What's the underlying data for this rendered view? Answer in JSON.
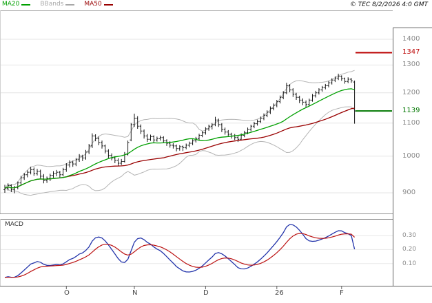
{
  "header": {
    "legend": [
      {
        "label": "MA20",
        "color": "#00a000"
      },
      {
        "label": "BBands",
        "color": "#a8a8a8"
      },
      {
        "label": "MA50",
        "color": "#990000"
      }
    ],
    "copyright": "© TEC 8/2/2026 4:0 GMT"
  },
  "macd_panel": {
    "label": "MACD"
  },
  "chart_data": {
    "type": "candlestick",
    "style": "ohlc-bars",
    "title": "",
    "x_axis": {
      "labels": [
        "O",
        "N",
        "D",
        "26",
        "F"
      ],
      "month_start_indices": [
        19,
        40,
        62,
        84,
        104
      ]
    },
    "price_scale": {
      "scale": "log",
      "ticks": [
        1400,
        1300,
        1200,
        1100,
        1000,
        900
      ],
      "visible_range": [
        848,
        1520
      ]
    },
    "levels": {
      "resistance": 1347,
      "resistance_color": "#bb0000",
      "support": 1139,
      "support_color": "#007700"
    },
    "overlays": [
      {
        "name": "MA20",
        "type": "sma",
        "period": 20,
        "color": "#00a000"
      },
      {
        "name": "MA50",
        "type": "sma",
        "period": 50,
        "color": "#990000"
      },
      {
        "name": "BBands",
        "type": "bollinger",
        "period": 20,
        "stddev": 2,
        "color": "#b4b4b4"
      }
    ],
    "indicator": {
      "name": "MACD",
      "fast": 12,
      "slow": 26,
      "signal": 9,
      "tick_labels": [
        "0.30",
        "0.20",
        "0.10"
      ],
      "macd_color": "#2233aa",
      "signal_color": "#bb1111"
    },
    "candles": [
      [
        908,
        921,
        900,
        912
      ],
      [
        912,
        925,
        906,
        919
      ],
      [
        919,
        922,
        902,
        908
      ],
      [
        908,
        918,
        899,
        914
      ],
      [
        914,
        930,
        909,
        926
      ],
      [
        926,
        945,
        921,
        940
      ],
      [
        940,
        953,
        934,
        948
      ],
      [
        948,
        960,
        941,
        955
      ],
      [
        955,
        970,
        949,
        962
      ],
      [
        962,
        968,
        945,
        952
      ],
      [
        952,
        964,
        946,
        958
      ],
      [
        958,
        962,
        938,
        944
      ],
      [
        944,
        950,
        925,
        932
      ],
      [
        932,
        943,
        926,
        938
      ],
      [
        938,
        951,
        931,
        946
      ],
      [
        946,
        958,
        940,
        952
      ],
      [
        952,
        961,
        944,
        955
      ],
      [
        955,
        959,
        940,
        948
      ],
      [
        948,
        967,
        944,
        962
      ],
      [
        962,
        980,
        956,
        975
      ],
      [
        975,
        988,
        968,
        982
      ],
      [
        982,
        987,
        970,
        978
      ],
      [
        978,
        995,
        972,
        990
      ],
      [
        990,
        1006,
        984,
        1000
      ],
      [
        1000,
        1004,
        986,
        995
      ],
      [
        995,
        1018,
        990,
        1012
      ],
      [
        1012,
        1036,
        1006,
        1030
      ],
      [
        1030,
        1068,
        1024,
        1060
      ],
      [
        1060,
        1065,
        1044,
        1052
      ],
      [
        1052,
        1058,
        1032,
        1040
      ],
      [
        1040,
        1046,
        1022,
        1030
      ],
      [
        1030,
        1034,
        1008,
        1015
      ],
      [
        1015,
        1020,
        995,
        1002
      ],
      [
        1002,
        1008,
        988,
        995
      ],
      [
        995,
        1000,
        980,
        988
      ],
      [
        988,
        994,
        972,
        980
      ],
      [
        980,
        992,
        975,
        985
      ],
      [
        985,
        1012,
        982,
        1005
      ],
      [
        1005,
        1046,
        1002,
        1040
      ],
      [
        1048,
        1100,
        1044,
        1095
      ],
      [
        1095,
        1130,
        1088,
        1115
      ],
      [
        1115,
        1122,
        1082,
        1090
      ],
      [
        1090,
        1096,
        1066,
        1075
      ],
      [
        1075,
        1080,
        1052,
        1060
      ],
      [
        1060,
        1066,
        1042,
        1050
      ],
      [
        1050,
        1064,
        1045,
        1058
      ],
      [
        1058,
        1062,
        1040,
        1048
      ],
      [
        1048,
        1058,
        1043,
        1052
      ],
      [
        1052,
        1061,
        1046,
        1055
      ],
      [
        1055,
        1059,
        1038,
        1045
      ],
      [
        1045,
        1050,
        1030,
        1038
      ],
      [
        1038,
        1044,
        1025,
        1032
      ],
      [
        1032,
        1038,
        1022,
        1030
      ],
      [
        1030,
        1034,
        1014,
        1022
      ],
      [
        1022,
        1032,
        1016,
        1028
      ],
      [
        1028,
        1031,
        1015,
        1025
      ],
      [
        1025,
        1037,
        1020,
        1032
      ],
      [
        1032,
        1043,
        1026,
        1038
      ],
      [
        1038,
        1050,
        1032,
        1045
      ],
      [
        1045,
        1057,
        1040,
        1052
      ],
      [
        1052,
        1067,
        1047,
        1062
      ],
      [
        1062,
        1075,
        1056,
        1070
      ],
      [
        1070,
        1087,
        1064,
        1082
      ],
      [
        1082,
        1095,
        1076,
        1090
      ],
      [
        1090,
        1100,
        1080,
        1095
      ],
      [
        1095,
        1120,
        1090,
        1110
      ],
      [
        1110,
        1114,
        1088,
        1095
      ],
      [
        1095,
        1100,
        1072,
        1080
      ],
      [
        1080,
        1086,
        1064,
        1072
      ],
      [
        1072,
        1078,
        1058,
        1065
      ],
      [
        1065,
        1070,
        1052,
        1060
      ],
      [
        1060,
        1066,
        1048,
        1055
      ],
      [
        1055,
        1060,
        1042,
        1050
      ],
      [
        1050,
        1068,
        1046,
        1062
      ],
      [
        1062,
        1076,
        1056,
        1070
      ],
      [
        1070,
        1086,
        1065,
        1080
      ],
      [
        1080,
        1095,
        1074,
        1090
      ],
      [
        1090,
        1104,
        1084,
        1098
      ],
      [
        1098,
        1111,
        1092,
        1105
      ],
      [
        1105,
        1121,
        1100,
        1115
      ],
      [
        1115,
        1131,
        1109,
        1125
      ],
      [
        1125,
        1141,
        1119,
        1135
      ],
      [
        1135,
        1154,
        1129,
        1148
      ],
      [
        1148,
        1164,
        1141,
        1158
      ],
      [
        1158,
        1176,
        1151,
        1170
      ],
      [
        1170,
        1191,
        1164,
        1185
      ],
      [
        1185,
        1206,
        1178,
        1200
      ],
      [
        1200,
        1235,
        1195,
        1225
      ],
      [
        1225,
        1230,
        1202,
        1210
      ],
      [
        1210,
        1216,
        1186,
        1195
      ],
      [
        1195,
        1200,
        1176,
        1185
      ],
      [
        1185,
        1190,
        1165,
        1175
      ],
      [
        1175,
        1181,
        1158,
        1168
      ],
      [
        1168,
        1174,
        1150,
        1160
      ],
      [
        1160,
        1180,
        1155,
        1175
      ],
      [
        1175,
        1196,
        1170,
        1190
      ],
      [
        1190,
        1207,
        1184,
        1200
      ],
      [
        1200,
        1216,
        1194,
        1210
      ],
      [
        1210,
        1224,
        1204,
        1218
      ],
      [
        1218,
        1231,
        1212,
        1225
      ],
      [
        1225,
        1241,
        1219,
        1235
      ],
      [
        1235,
        1251,
        1229,
        1245
      ],
      [
        1245,
        1258,
        1238,
        1252
      ],
      [
        1252,
        1268,
        1245,
        1258
      ],
      [
        1258,
        1262,
        1242,
        1250
      ],
      [
        1250,
        1254,
        1232,
        1240
      ],
      [
        1240,
        1255,
        1234,
        1248
      ],
      [
        1248,
        1252,
        1235,
        1242
      ],
      [
        1238,
        1243,
        1098,
        1139
      ]
    ]
  }
}
